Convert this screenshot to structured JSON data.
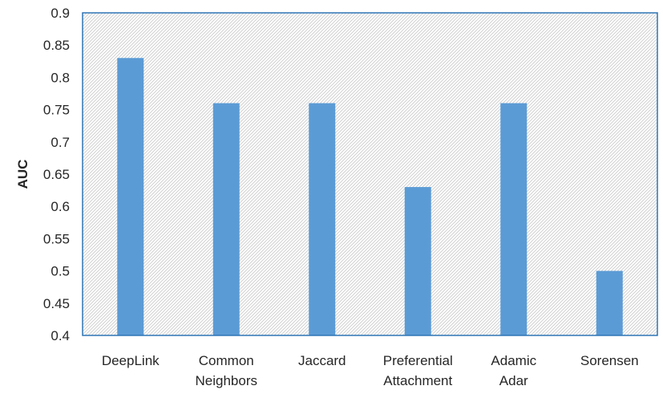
{
  "chart_data": {
    "type": "bar",
    "title": "",
    "xlabel": "",
    "ylabel": "AUC",
    "ylim": [
      0.4,
      0.9
    ],
    "yticks": [
      "0.4",
      "0.45",
      "0.5",
      "0.55",
      "0.6",
      "0.65",
      "0.7",
      "0.75",
      "0.8",
      "0.85",
      "0.9"
    ],
    "categories": [
      [
        "DeepLink"
      ],
      [
        "Common",
        "Neighbors"
      ],
      [
        "Jaccard"
      ],
      [
        "Preferential",
        "Attachment"
      ],
      [
        "Adamic",
        "Adar"
      ],
      [
        "Sorensen"
      ]
    ],
    "values": [
      0.83,
      0.76,
      0.76,
      0.63,
      0.76,
      0.5
    ],
    "grid": false,
    "legend": "none",
    "colors": {
      "bar": "#5b9bd5",
      "plot_border": "#2e75b6",
      "hatch": "#c8c8c8",
      "text": "#262626"
    }
  }
}
